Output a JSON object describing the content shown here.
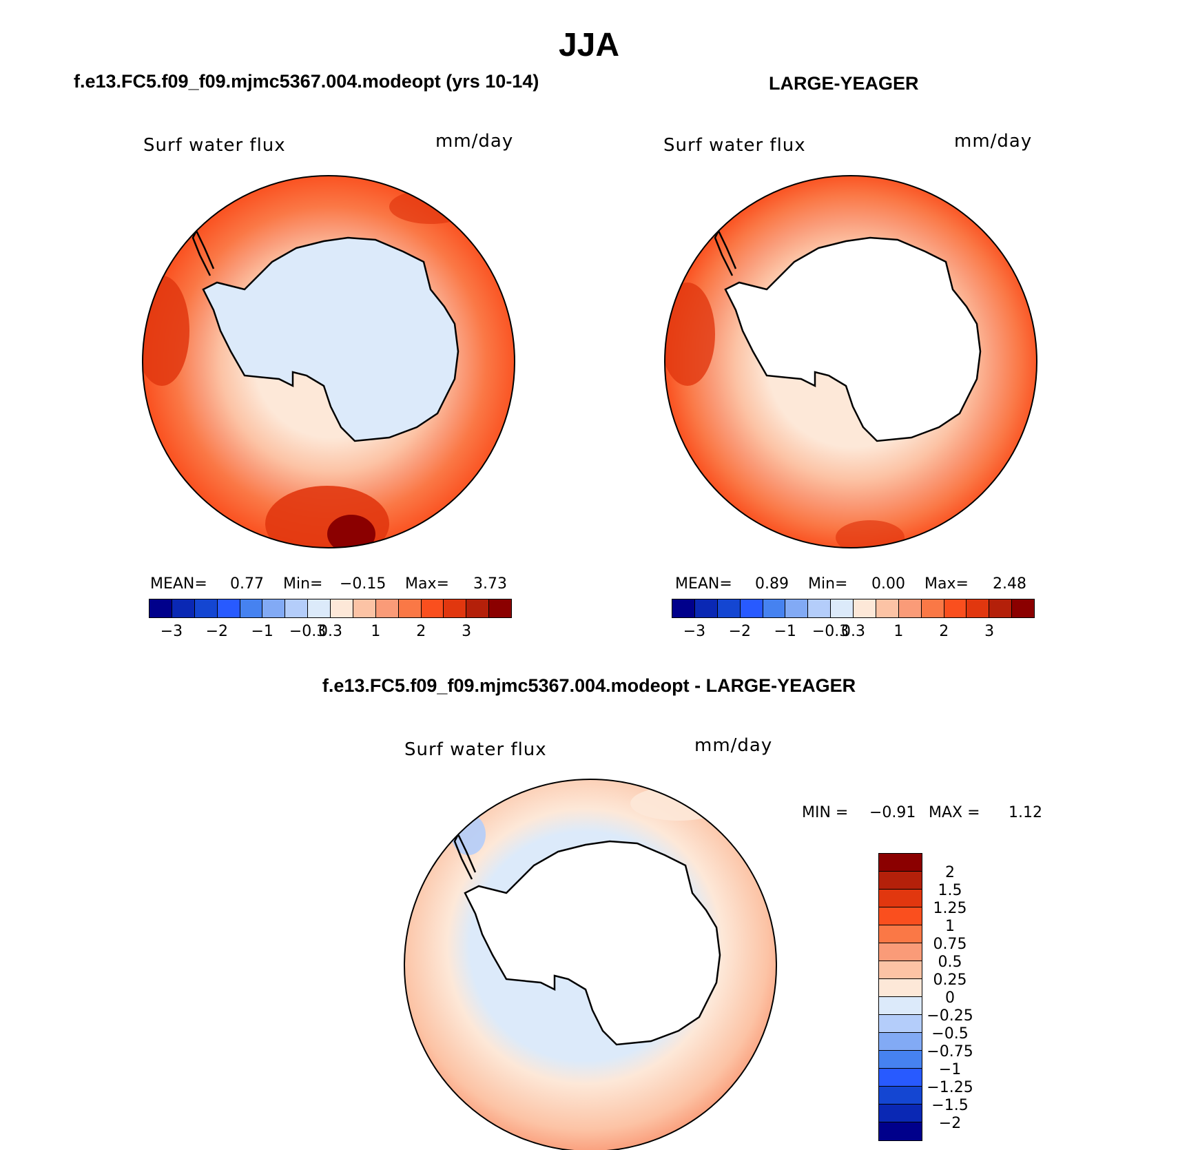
{
  "title": "JJA",
  "panels": [
    {
      "title": "f.e13.FC5.f09_f09.mjmc5367.004.modeopt (yrs 10-14)",
      "variable": "Surf water flux",
      "units": "mm/day",
      "stats": {
        "mean_label": "MEAN=",
        "mean": "0.77",
        "min_label": "Min=",
        "min": "−0.15",
        "max_label": "Max=",
        "max": "3.73"
      }
    },
    {
      "title": "LARGE-YEAGER",
      "variable": "Surf water flux",
      "units": "mm/day",
      "stats": {
        "mean_label": "MEAN=",
        "mean": "0.89",
        "min_label": "Min=",
        "min": "0.00",
        "max_label": "Max=",
        "max": "2.48"
      }
    },
    {
      "title": "f.e13.FC5.f09_f09.mjmc5367.004.modeopt - LARGE-YEAGER",
      "variable": "Surf water flux",
      "units": "mm/day",
      "stats": {
        "min_label": "MIN =",
        "min": "−0.91",
        "max_label": "MAX =",
        "max": "1.12"
      }
    }
  ],
  "colorbar_main": {
    "colors": [
      "#00008b",
      "#0a28b4",
      "#1446d2",
      "#285aff",
      "#4682f0",
      "#82aaf5",
      "#b4cdfa",
      "#dceafa",
      "#fde8d8",
      "#fcc3a5",
      "#fa9b78",
      "#fa7846",
      "#fa4f1e",
      "#e1370f",
      "#b4200a",
      "#8b0000"
    ],
    "ticks": [
      "−3",
      "−2",
      "−1",
      "−0.3",
      "0.3",
      "1",
      "2",
      "3"
    ]
  },
  "colorbar_diff": {
    "colors": [
      "#8b0000",
      "#b4200a",
      "#e1370f",
      "#fa4f1e",
      "#fa7846",
      "#fa9b78",
      "#fcc3a5",
      "#fde8d8",
      "#dceafa",
      "#b4cdfa",
      "#82aaf5",
      "#4682f0",
      "#285aff",
      "#1446d2",
      "#0a28b4",
      "#00008b"
    ],
    "ticks": [
      "2",
      "1.5",
      "1.25",
      "1",
      "0.75",
      "0.5",
      "0.25",
      "0",
      "−0.25",
      "−0.5",
      "−0.75",
      "−1",
      "−1.25",
      "−1.5",
      "−2"
    ]
  }
}
